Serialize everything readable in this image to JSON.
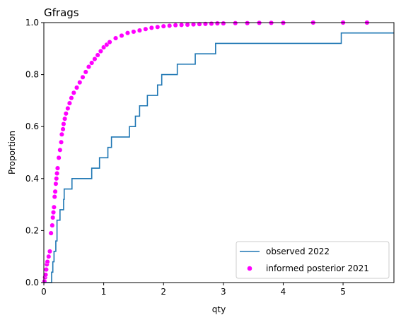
{
  "chart_data": {
    "type": "line",
    "title": "Gfrags",
    "xlabel": "qty",
    "ylabel": "Proportion",
    "xlim": [
      0,
      5.85
    ],
    "ylim": [
      0,
      1.0
    ],
    "xticks": [
      0,
      1,
      2,
      3,
      4,
      5
    ],
    "yticks": [
      0.0,
      0.2,
      0.4,
      0.6,
      0.8,
      1.0
    ],
    "xtick_labels": [
      "0",
      "1",
      "2",
      "3",
      "4",
      "5"
    ],
    "ytick_labels": [
      "0.0",
      "0.2",
      "0.4",
      "0.6",
      "0.8",
      "1.0"
    ],
    "legend_position": "lower-right",
    "grid": false,
    "series": [
      {
        "name": "observed 2022",
        "kind": "step",
        "color": "#1f77b4",
        "x": [
          0,
          0.13,
          0.15,
          0.17,
          0.2,
          0.22,
          0.27,
          0.33,
          0.34,
          0.47,
          0.8,
          0.93,
          1.07,
          1.13,
          1.43,
          1.53,
          1.6,
          1.63,
          1.73,
          1.9,
          1.93,
          1.97,
          2.23,
          2.53,
          2.87,
          4.97,
          5.85
        ],
        "y": [
          0,
          0.04,
          0.08,
          0.12,
          0.16,
          0.24,
          0.28,
          0.32,
          0.36,
          0.4,
          0.44,
          0.48,
          0.52,
          0.56,
          0.6,
          0.64,
          0.68,
          0.68,
          0.72,
          0.76,
          0.76,
          0.8,
          0.84,
          0.88,
          0.92,
          0.96,
          0.96
        ]
      },
      {
        "name": "informed posterior 2021",
        "kind": "scatter",
        "color": "#ff00ff",
        "x": [
          0.01,
          0.02,
          0.03,
          0.04,
          0.05,
          0.06,
          0.08,
          0.1,
          0.12,
          0.14,
          0.15,
          0.16,
          0.17,
          0.18,
          0.19,
          0.2,
          0.21,
          0.22,
          0.23,
          0.25,
          0.27,
          0.29,
          0.3,
          0.32,
          0.33,
          0.35,
          0.37,
          0.4,
          0.43,
          0.46,
          0.5,
          0.55,
          0.6,
          0.65,
          0.7,
          0.75,
          0.8,
          0.85,
          0.9,
          0.95,
          1.0,
          1.05,
          1.1,
          1.2,
          1.3,
          1.4,
          1.5,
          1.6,
          1.7,
          1.8,
          1.9,
          2.0,
          2.1,
          2.2,
          2.3,
          2.4,
          2.5,
          2.6,
          2.7,
          2.8,
          2.9,
          3.0,
          3.2,
          3.4,
          3.6,
          3.8,
          4.0,
          4.5,
          5.0,
          5.4
        ],
        "y": [
          0.005,
          0.02,
          0.03,
          0.05,
          0.07,
          0.08,
          0.1,
          0.12,
          0.19,
          0.22,
          0.25,
          0.27,
          0.29,
          0.33,
          0.35,
          0.38,
          0.4,
          0.42,
          0.44,
          0.48,
          0.51,
          0.54,
          0.57,
          0.59,
          0.61,
          0.63,
          0.65,
          0.67,
          0.69,
          0.71,
          0.73,
          0.75,
          0.77,
          0.79,
          0.81,
          0.83,
          0.845,
          0.86,
          0.875,
          0.89,
          0.905,
          0.915,
          0.925,
          0.94,
          0.95,
          0.96,
          0.965,
          0.97,
          0.975,
          0.98,
          0.983,
          0.986,
          0.988,
          0.99,
          0.991,
          0.992,
          0.993,
          0.994,
          0.995,
          0.996,
          0.997,
          0.997,
          0.998,
          0.998,
          0.999,
          0.999,
          0.999,
          1.0,
          1.0,
          1.0
        ]
      }
    ]
  }
}
